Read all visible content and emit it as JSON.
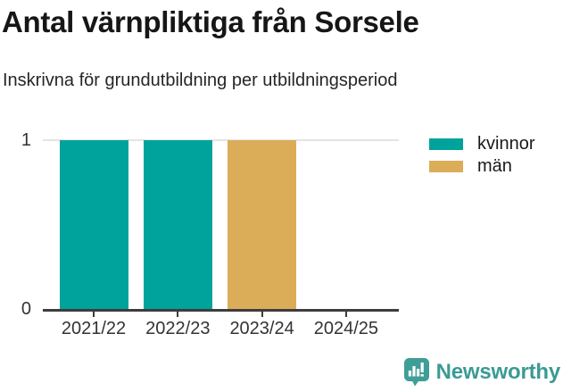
{
  "title": "Antal värnpliktiga från Sorsele",
  "subtitle": "Inskrivna för grundutbildning per utbildningsperiod",
  "chart_data": {
    "type": "bar",
    "stacked": true,
    "title": "Antal värnpliktiga från Sorsele",
    "subtitle": "Inskrivna för grundutbildning per utbildningsperiod",
    "categories": [
      "2021/22",
      "2022/23",
      "2023/24",
      "2024/25"
    ],
    "series": [
      {
        "name": "kvinnor",
        "color": "#00a39b",
        "values": [
          1,
          1,
          0,
          0
        ]
      },
      {
        "name": "män",
        "color": "#dbad58",
        "values": [
          0,
          0,
          1,
          0
        ]
      }
    ],
    "xlabel": "",
    "ylabel": "",
    "ylim": [
      0,
      1
    ],
    "yticks": [
      0,
      1
    ],
    "grid": "gridline at y=1 only, horizontal, light gray",
    "legend_position": "right-top"
  },
  "branding": {
    "logo_text": "Newsworthy",
    "logo_icon": "newsworthy-speech-bubble-bar-chart-icon",
    "logo_color": "#3f9e97",
    "logo_text_color": "#3b9a94"
  },
  "colors": {
    "background": "#ffffff",
    "axis": "#3d3d3d",
    "gridline": "#e4e4e4",
    "axis_text": "#333333",
    "title_text": "#161616"
  }
}
